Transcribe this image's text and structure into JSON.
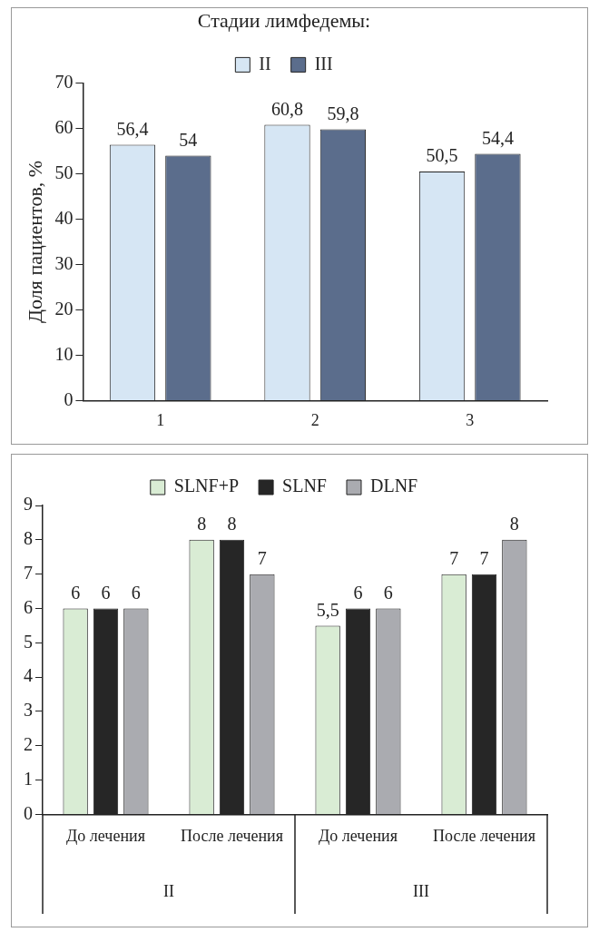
{
  "chart_data": [
    {
      "type": "bar",
      "ylabel": "Доля пациентов, %",
      "legend_title": "Стадии лимфедемы:",
      "categories": [
        "1",
        "2",
        "3"
      ],
      "series": [
        {
          "name": "II",
          "color": "#d6e6f4",
          "values": [
            56.4,
            60.8,
            50.5
          ],
          "value_labels": [
            "56,4",
            "60,8",
            "50,5"
          ]
        },
        {
          "name": "III",
          "color": "#5b6d8c",
          "values": [
            54,
            59.8,
            54.4
          ],
          "value_labels": [
            "54",
            "59,8",
            "54,4"
          ]
        }
      ],
      "ylim": [
        0,
        70
      ],
      "yticks": [
        0,
        10,
        20,
        30,
        40,
        50,
        60,
        70
      ],
      "grid": false,
      "legend": "top"
    },
    {
      "type": "bar",
      "categories": [
        "До лечения",
        "После лечения",
        "До лечения",
        "После лечения"
      ],
      "series": [
        {
          "name": "SLNF+P",
          "color": "#d9ecd4",
          "values": [
            6,
            8,
            5.5,
            7
          ],
          "value_labels": [
            "6",
            "8",
            "5,5",
            "7"
          ]
        },
        {
          "name": "SLNF",
          "color": "#262626",
          "values": [
            6,
            8,
            6,
            7
          ],
          "value_labels": [
            "6",
            "8",
            "6",
            "7"
          ]
        },
        {
          "name": "DLNF",
          "color": "#aaabb0",
          "values": [
            6,
            7,
            6,
            8
          ],
          "value_labels": [
            "6",
            "7",
            "6",
            "8"
          ]
        }
      ],
      "annotations": [
        "II",
        "III"
      ],
      "ylim": [
        0,
        9
      ],
      "yticks": [
        0,
        1,
        2,
        3,
        4,
        5,
        6,
        7,
        8,
        9
      ],
      "grid": false,
      "legend": "top"
    }
  ]
}
